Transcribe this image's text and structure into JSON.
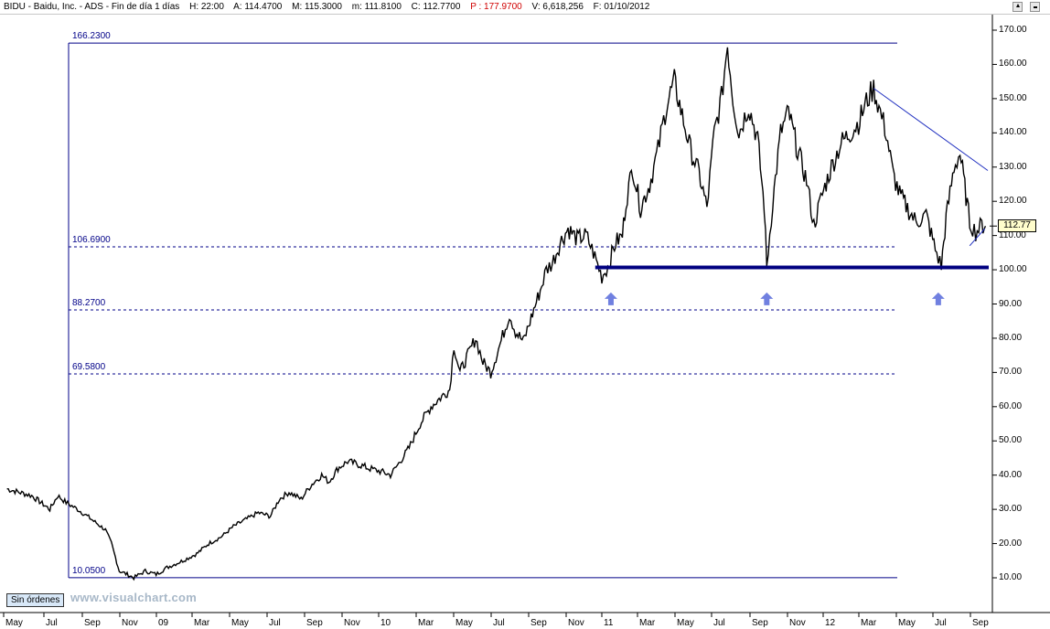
{
  "header": {
    "symbol": "BIDU - Baidu, Inc. - ADS - Fin de día 1 días",
    "hour": "H: 22:00",
    "open": "A: 114.4700",
    "high": "M: 115.3000",
    "low": "m: 111.8100",
    "close": "C: 112.7700",
    "p": "P : 177.9700",
    "volume": "V: 6,618,256",
    "date": "F: 01/10/2012"
  },
  "footer": {
    "orders_label": "Sin órdenes",
    "watermark": "www.visualchart.com"
  },
  "colors": {
    "price": "#000000",
    "levels": "#000088",
    "support": "#000080",
    "arrows": "#7080e0",
    "tag_bg": "#fffdcc"
  },
  "chart_data": {
    "type": "line",
    "title": "",
    "xlabel": "",
    "ylabel": "",
    "ylim": [
      0,
      170
    ],
    "y_ticks": [
      "170.00",
      "160.00",
      "150.00",
      "140.00",
      "130.00",
      "120.00",
      "110.00",
      "100.00",
      "90.00",
      "80.00",
      "70.00",
      "60.00",
      "50.00",
      "40.00",
      "30.00",
      "20.00",
      "10.00"
    ],
    "x_ticks": [
      "May",
      "Jul",
      "Sep",
      "Nov",
      "09",
      "Mar",
      "May",
      "Jul",
      "Sep",
      "Nov",
      "10",
      "Mar",
      "May",
      "Jul",
      "Sep",
      "Nov",
      "11",
      "Mar",
      "May",
      "Jul",
      "Sep",
      "Nov",
      "12",
      "Mar",
      "May",
      "Jul",
      "Sep"
    ],
    "last_price_label": "112.77",
    "series": [
      {
        "values": [
          {
            "x": "2008-04-25",
            "y": 36
          },
          {
            "x": "2008-05-15",
            "y": 35
          },
          {
            "x": "2008-06-05",
            "y": 34
          },
          {
            "x": "2008-06-20",
            "y": 32
          },
          {
            "x": "2008-07-05",
            "y": 30
          },
          {
            "x": "2008-07-18",
            "y": 34
          },
          {
            "x": "2008-08-01",
            "y": 32
          },
          {
            "x": "2008-08-20",
            "y": 30
          },
          {
            "x": "2008-09-05",
            "y": 28
          },
          {
            "x": "2008-09-20",
            "y": 26
          },
          {
            "x": "2008-10-05",
            "y": 24
          },
          {
            "x": "2008-10-15",
            "y": 20
          },
          {
            "x": "2008-10-28",
            "y": 12
          },
          {
            "x": "2008-11-10",
            "y": 11
          },
          {
            "x": "2008-11-21",
            "y": 10
          },
          {
            "x": "2008-12-10",
            "y": 12
          },
          {
            "x": "2008-12-28",
            "y": 11
          },
          {
            "x": "2009-01-15",
            "y": 13
          },
          {
            "x": "2009-02-10",
            "y": 15
          },
          {
            "x": "2009-03-05",
            "y": 17
          },
          {
            "x": "2009-03-25",
            "y": 20
          },
          {
            "x": "2009-04-15",
            "y": 22
          },
          {
            "x": "2009-05-05",
            "y": 25
          },
          {
            "x": "2009-05-25",
            "y": 27
          },
          {
            "x": "2009-06-15",
            "y": 29
          },
          {
            "x": "2009-07-05",
            "y": 28
          },
          {
            "x": "2009-07-20",
            "y": 33
          },
          {
            "x": "2009-08-05",
            "y": 35
          },
          {
            "x": "2009-08-25",
            "y": 33
          },
          {
            "x": "2009-09-10",
            "y": 37
          },
          {
            "x": "2009-09-28",
            "y": 40
          },
          {
            "x": "2009-10-10",
            "y": 38
          },
          {
            "x": "2009-10-25",
            "y": 42
          },
          {
            "x": "2009-11-10",
            "y": 44
          },
          {
            "x": "2009-11-30",
            "y": 43
          },
          {
            "x": "2009-12-15",
            "y": 42
          },
          {
            "x": "2010-01-05",
            "y": 41
          },
          {
            "x": "2010-01-20",
            "y": 40
          },
          {
            "x": "2010-02-05",
            "y": 44
          },
          {
            "x": "2010-02-20",
            "y": 48
          },
          {
            "x": "2010-03-10",
            "y": 55
          },
          {
            "x": "2010-03-28",
            "y": 60
          },
          {
            "x": "2010-04-15",
            "y": 63
          },
          {
            "x": "2010-04-28",
            "y": 65
          },
          {
            "x": "2010-05-05",
            "y": 78
          },
          {
            "x": "2010-05-15",
            "y": 70
          },
          {
            "x": "2010-05-28",
            "y": 75
          },
          {
            "x": "2010-06-10",
            "y": 80
          },
          {
            "x": "2010-06-22",
            "y": 73
          },
          {
            "x": "2010-07-05",
            "y": 70
          },
          {
            "x": "2010-07-20",
            "y": 78
          },
          {
            "x": "2010-08-05",
            "y": 87
          },
          {
            "x": "2010-08-15",
            "y": 82
          },
          {
            "x": "2010-08-28",
            "y": 79
          },
          {
            "x": "2010-09-10",
            "y": 86
          },
          {
            "x": "2010-09-25",
            "y": 94
          },
          {
            "x": "2010-10-05",
            "y": 100
          },
          {
            "x": "2010-10-15",
            "y": 102
          },
          {
            "x": "2010-10-28",
            "y": 108
          },
          {
            "x": "2010-11-10",
            "y": 112
          },
          {
            "x": "2010-11-25",
            "y": 109
          },
          {
            "x": "2010-12-10",
            "y": 110
          },
          {
            "x": "2010-12-22",
            "y": 105
          },
          {
            "x": "2011-01-05",
            "y": 98
          },
          {
            "x": "2011-01-15",
            "y": 101
          },
          {
            "x": "2011-01-28",
            "y": 108
          },
          {
            "x": "2011-02-08",
            "y": 110
          },
          {
            "x": "2011-02-14",
            "y": 120
          },
          {
            "x": "2011-02-25",
            "y": 130
          },
          {
            "x": "2011-03-10",
            "y": 118
          },
          {
            "x": "2011-03-25",
            "y": 125
          },
          {
            "x": "2011-04-08",
            "y": 135
          },
          {
            "x": "2011-04-22",
            "y": 148
          },
          {
            "x": "2011-05-05",
            "y": 155
          },
          {
            "x": "2011-05-18",
            "y": 145
          },
          {
            "x": "2011-06-01",
            "y": 135
          },
          {
            "x": "2011-06-15",
            "y": 128
          },
          {
            "x": "2011-06-28",
            "y": 118
          },
          {
            "x": "2011-07-10",
            "y": 140
          },
          {
            "x": "2011-07-22",
            "y": 150
          },
          {
            "x": "2011-08-01",
            "y": 166
          },
          {
            "x": "2011-08-10",
            "y": 150
          },
          {
            "x": "2011-08-20",
            "y": 140
          },
          {
            "x": "2011-09-05",
            "y": 148
          },
          {
            "x": "2011-09-20",
            "y": 138
          },
          {
            "x": "2011-10-01",
            "y": 118
          },
          {
            "x": "2011-10-05",
            "y": 101
          },
          {
            "x": "2011-10-15",
            "y": 120
          },
          {
            "x": "2011-10-28",
            "y": 140
          },
          {
            "x": "2011-11-10",
            "y": 146
          },
          {
            "x": "2011-11-25",
            "y": 135
          },
          {
            "x": "2011-12-10",
            "y": 126
          },
          {
            "x": "2011-12-22",
            "y": 113
          },
          {
            "x": "2012-01-05",
            "y": 122
          },
          {
            "x": "2012-01-20",
            "y": 130
          },
          {
            "x": "2012-02-05",
            "y": 137
          },
          {
            "x": "2012-02-20",
            "y": 140
          },
          {
            "x": "2012-03-05",
            "y": 143
          },
          {
            "x": "2012-03-20",
            "y": 150
          },
          {
            "x": "2012-03-30",
            "y": 153
          },
          {
            "x": "2012-04-10",
            "y": 146
          },
          {
            "x": "2012-04-20",
            "y": 140
          },
          {
            "x": "2012-05-01",
            "y": 128
          },
          {
            "x": "2012-05-12",
            "y": 122
          },
          {
            "x": "2012-05-25",
            "y": 118
          },
          {
            "x": "2012-06-08",
            "y": 114
          },
          {
            "x": "2012-06-25",
            "y": 116
          },
          {
            "x": "2012-07-10",
            "y": 106
          },
          {
            "x": "2012-07-20",
            "y": 101
          },
          {
            "x": "2012-07-28",
            "y": 115
          },
          {
            "x": "2012-08-10",
            "y": 130
          },
          {
            "x": "2012-08-20",
            "y": 134
          },
          {
            "x": "2012-08-28",
            "y": 124
          },
          {
            "x": "2012-09-05",
            "y": 114
          },
          {
            "x": "2012-09-15",
            "y": 111
          },
          {
            "x": "2012-09-25",
            "y": 113
          },
          {
            "x": "2012-10-01",
            "y": 112.77
          }
        ]
      }
    ],
    "levels": [
      {
        "label": "166.2300",
        "value": 166.23,
        "style": "solid"
      },
      {
        "label": "106.6900",
        "value": 106.69,
        "style": "dashed"
      },
      {
        "label": "88.2700",
        "value": 88.27,
        "style": "dashed"
      },
      {
        "label": "69.5800",
        "value": 69.58,
        "style": "dashed"
      },
      {
        "label": "10.0500",
        "value": 10.05,
        "style": "solid"
      }
    ],
    "fib_box_start": "2008-11-21",
    "fib_box_end": "2012-04-01",
    "support": {
      "value": 100.7,
      "start": "2010-12-25",
      "end": "2012-10-05"
    },
    "trendline": [
      {
        "x": "2012-03-30",
        "y": 153
      },
      {
        "x": "2012-10-05",
        "y": 129
      }
    ],
    "trendline_lower": [
      {
        "x": "2012-09-05",
        "y": 107
      },
      {
        "x": "2012-09-30",
        "y": 112
      }
    ],
    "arrows": [
      {
        "x": "2011-01-20",
        "y": 91.5
      },
      {
        "x": "2011-10-05",
        "y": 91.5
      },
      {
        "x": "2012-07-15",
        "y": 91.5
      }
    ],
    "grid": false,
    "legend": "none"
  }
}
